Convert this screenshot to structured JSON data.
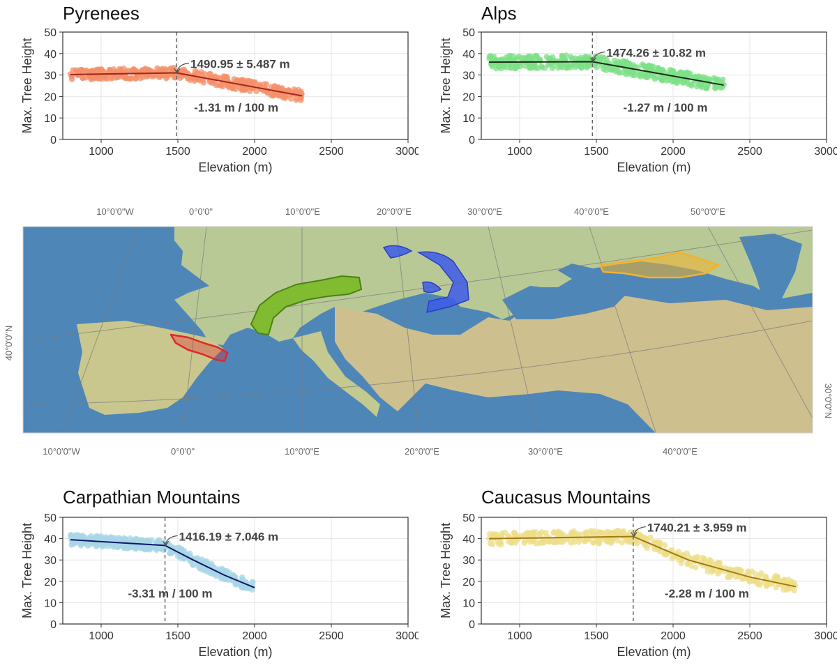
{
  "chart_data": [
    {
      "type": "scatter",
      "title": "Pyrenees",
      "xlabel": "Elevation (m)",
      "ylabel": "Max. Tree Height",
      "xlim": [
        750,
        3000
      ],
      "ylim": [
        0,
        50
      ],
      "x_ticks": [
        1000,
        1500,
        2000,
        2500,
        3000
      ],
      "y_ticks": [
        0,
        10,
        20,
        30,
        40,
        50
      ],
      "grid": true,
      "point_color": "#f4906a",
      "line_color": "#a0281e",
      "breakpoint": 1490.95,
      "breakpoint_label": "1490.95 ± 5.487 m",
      "slope_label": "-1.31 m / 100 m",
      "point_range": [
        800,
        2310
      ],
      "fit_line": [
        [
          800,
          30.2
        ],
        [
          1490.95,
          31
        ],
        [
          2310,
          20.3
        ]
      ],
      "band_halfwidth": 2.5
    },
    {
      "type": "scatter",
      "title": "Alps",
      "xlabel": "Elevation (m)",
      "ylabel": "Max. Tree Height",
      "xlim": [
        750,
        3000
      ],
      "ylim": [
        0,
        50
      ],
      "x_ticks": [
        1000,
        1500,
        2000,
        2500,
        3000
      ],
      "y_ticks": [
        0,
        10,
        20,
        30,
        40,
        50
      ],
      "grid": true,
      "point_color": "#7ee087",
      "line_color": "#1a2e18",
      "breakpoint": 1474.26,
      "breakpoint_label": "1474.26 ± 10.82 m",
      "slope_label": "-1.27 m / 100 m",
      "point_range": [
        800,
        2330
      ],
      "fit_line": [
        [
          800,
          36
        ],
        [
          1474.26,
          36.2
        ],
        [
          2330,
          25.3
        ]
      ],
      "band_halfwidth": 3
    },
    {
      "type": "scatter",
      "title": "Carpathian Mountains",
      "xlabel": "Elevation (m)",
      "ylabel": "Max. Tree Height",
      "xlim": [
        750,
        3000
      ],
      "ylim": [
        0,
        50
      ],
      "x_ticks": [
        1000,
        1500,
        2000,
        2500,
        3000
      ],
      "y_ticks": [
        0,
        10,
        20,
        30,
        40,
        50
      ],
      "grid": true,
      "point_color": "#a8d6e6",
      "line_color": "#0c1866",
      "breakpoint": 1416.19,
      "breakpoint_label": "1416.19 ± 7.046 m",
      "slope_label": "-3.31 m / 100 m",
      "point_range": [
        800,
        2000
      ],
      "fit_line": [
        [
          800,
          39.5
        ],
        [
          1416.19,
          36.8
        ],
        [
          1600,
          30
        ],
        [
          1800,
          23
        ],
        [
          2000,
          17
        ]
      ],
      "band_halfwidth": 2.5
    },
    {
      "type": "scatter",
      "title": "Caucasus Mountains",
      "xlabel": "Elevation (m)",
      "ylabel": "Max. Tree Height",
      "xlim": [
        750,
        3000
      ],
      "ylim": [
        0,
        50
      ],
      "x_ticks": [
        1000,
        1500,
        2000,
        2500,
        3000
      ],
      "y_ticks": [
        0,
        10,
        20,
        30,
        40,
        50
      ],
      "grid": true,
      "point_color": "#eedd88",
      "line_color": "#a07a14",
      "breakpoint": 1740.21,
      "breakpoint_label": "1740.21 ± 3.959 m",
      "slope_label": "-2.28 m / 100 m",
      "point_range": [
        800,
        2800
      ],
      "fit_line": [
        [
          800,
          40
        ],
        [
          1740.21,
          41
        ],
        [
          2100,
          30
        ],
        [
          2500,
          22
        ],
        [
          2800,
          17.5
        ]
      ],
      "band_halfwidth": 3
    }
  ],
  "map": {
    "top_labels": [
      "10°0'0\"W",
      "0°0'0\"",
      "10°0'0\"E",
      "20°0'0\"E",
      "30°0'0\"E",
      "40°0'0\"E",
      "50°0'0\"E"
    ],
    "bottom_labels": [
      "10°0'0\"W",
      "0°0'0\"",
      "10°0'0\"E",
      "20°0'0\"E",
      "30°0'0\"E",
      "40°0'0\"E"
    ],
    "left_label": "40°0'0\"N",
    "right_label": "30°0'0\"N",
    "region_colors": {
      "pyrenees": "#e0282a",
      "alps": "#7dbb2a",
      "carpathians": "#3d5be8",
      "caucasus": "#f2b32a"
    }
  }
}
